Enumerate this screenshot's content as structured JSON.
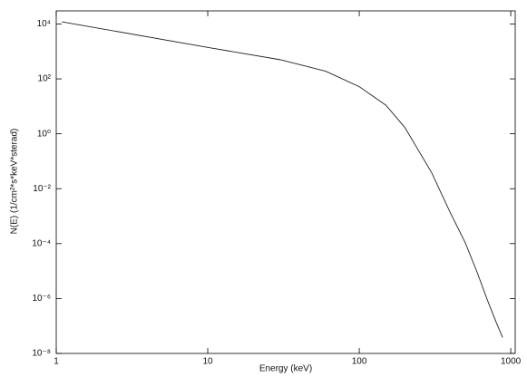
{
  "chart_data": {
    "type": "line",
    "xlabel": "Energy (keV)",
    "ylabel": "N(E) (1/cm²*s*keV*sterad)",
    "xscale": "log",
    "yscale": "log",
    "x": [
      1.09,
      10,
      30,
      60,
      100,
      150,
      200,
      300,
      400,
      500,
      600,
      700,
      800,
      884
    ],
    "series": [
      {
        "color": "#222222",
        "values": [
          12000,
          1400,
          500,
          190,
          52,
          11,
          1.7,
          0.039,
          0.0013,
          0.00011,
          9e-06,
          9e-07,
          1.4e-07,
          3.8e-08
        ]
      }
    ],
    "xlim": [
      1,
      1070
    ],
    "ylim": [
      1e-08,
      30000
    ],
    "xticks": [
      1,
      10,
      100,
      1000
    ],
    "yticks": [
      {
        "value": 10000,
        "label": "10⁴"
      },
      {
        "value": 100,
        "label": "10²"
      },
      {
        "value": 1,
        "label": "10⁰"
      },
      {
        "value": 0.01,
        "label": "10⁻²"
      },
      {
        "value": 0.0001,
        "label": "10⁻⁴"
      },
      {
        "value": 1e-06,
        "label": "10⁻⁶"
      },
      {
        "value": 1e-08,
        "label": "10⁻⁸"
      }
    ]
  }
}
